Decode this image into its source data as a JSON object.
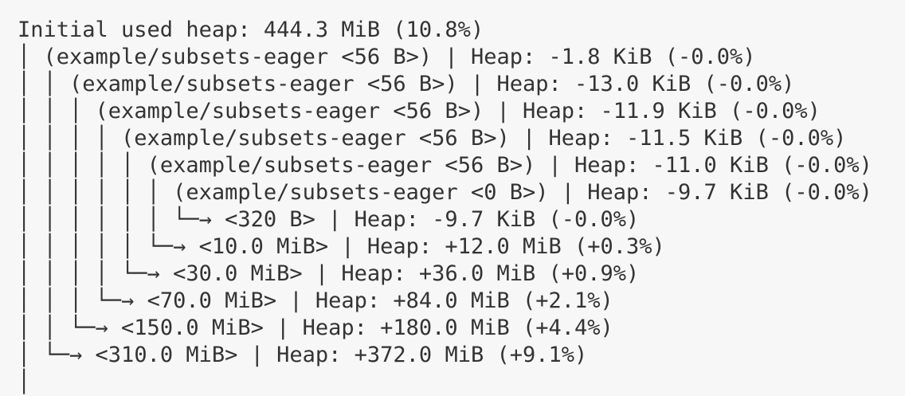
{
  "colors": {
    "background": "#f7f7f7",
    "text": "#333333"
  },
  "output": {
    "lines": [
      {
        "tree": "",
        "text": "Initial used heap: 444.3 MiB (10.8%)"
      },
      {
        "tree": "│ ",
        "text": "(example/subsets-eager <56 B>) | Heap: -1.8 KiB (-0.0%)"
      },
      {
        "tree": "│ │ ",
        "text": "(example/subsets-eager <56 B>) | Heap: -13.0 KiB (-0.0%)"
      },
      {
        "tree": "│ │ │ ",
        "text": "(example/subsets-eager <56 B>) | Heap: -11.9 KiB (-0.0%)"
      },
      {
        "tree": "│ │ │ │ ",
        "text": "(example/subsets-eager <56 B>) | Heap: -11.5 KiB (-0.0%)"
      },
      {
        "tree": "│ │ │ │ │ ",
        "text": "(example/subsets-eager <56 B>) | Heap: -11.0 KiB (-0.0%)"
      },
      {
        "tree": "│ │ │ │ │ │ ",
        "text": "(example/subsets-eager <0 B>) | Heap: -9.7 KiB (-0.0%)"
      },
      {
        "tree": "│ │ │ │ │ │ └─→ ",
        "text": "<320 B> | Heap: -9.7 KiB (-0.0%)"
      },
      {
        "tree": "│ │ │ │ │ └─→ ",
        "text": "<10.0 MiB> | Heap: +12.0 MiB (+0.3%)"
      },
      {
        "tree": "│ │ │ │ └─→ ",
        "text": "<30.0 MiB> | Heap: +36.0 MiB (+0.9%)"
      },
      {
        "tree": "│ │ │ └─→ ",
        "text": "<70.0 MiB> | Heap: +84.0 MiB (+2.1%)"
      },
      {
        "tree": "│ │ └─→ ",
        "text": "<150.0 MiB> | Heap: +180.0 MiB (+4.4%)"
      },
      {
        "tree": "│ └─→ ",
        "text": "<310.0 MiB> | Heap: +372.0 MiB (+9.1%)"
      },
      {
        "tree": "│",
        "text": ""
      }
    ]
  }
}
